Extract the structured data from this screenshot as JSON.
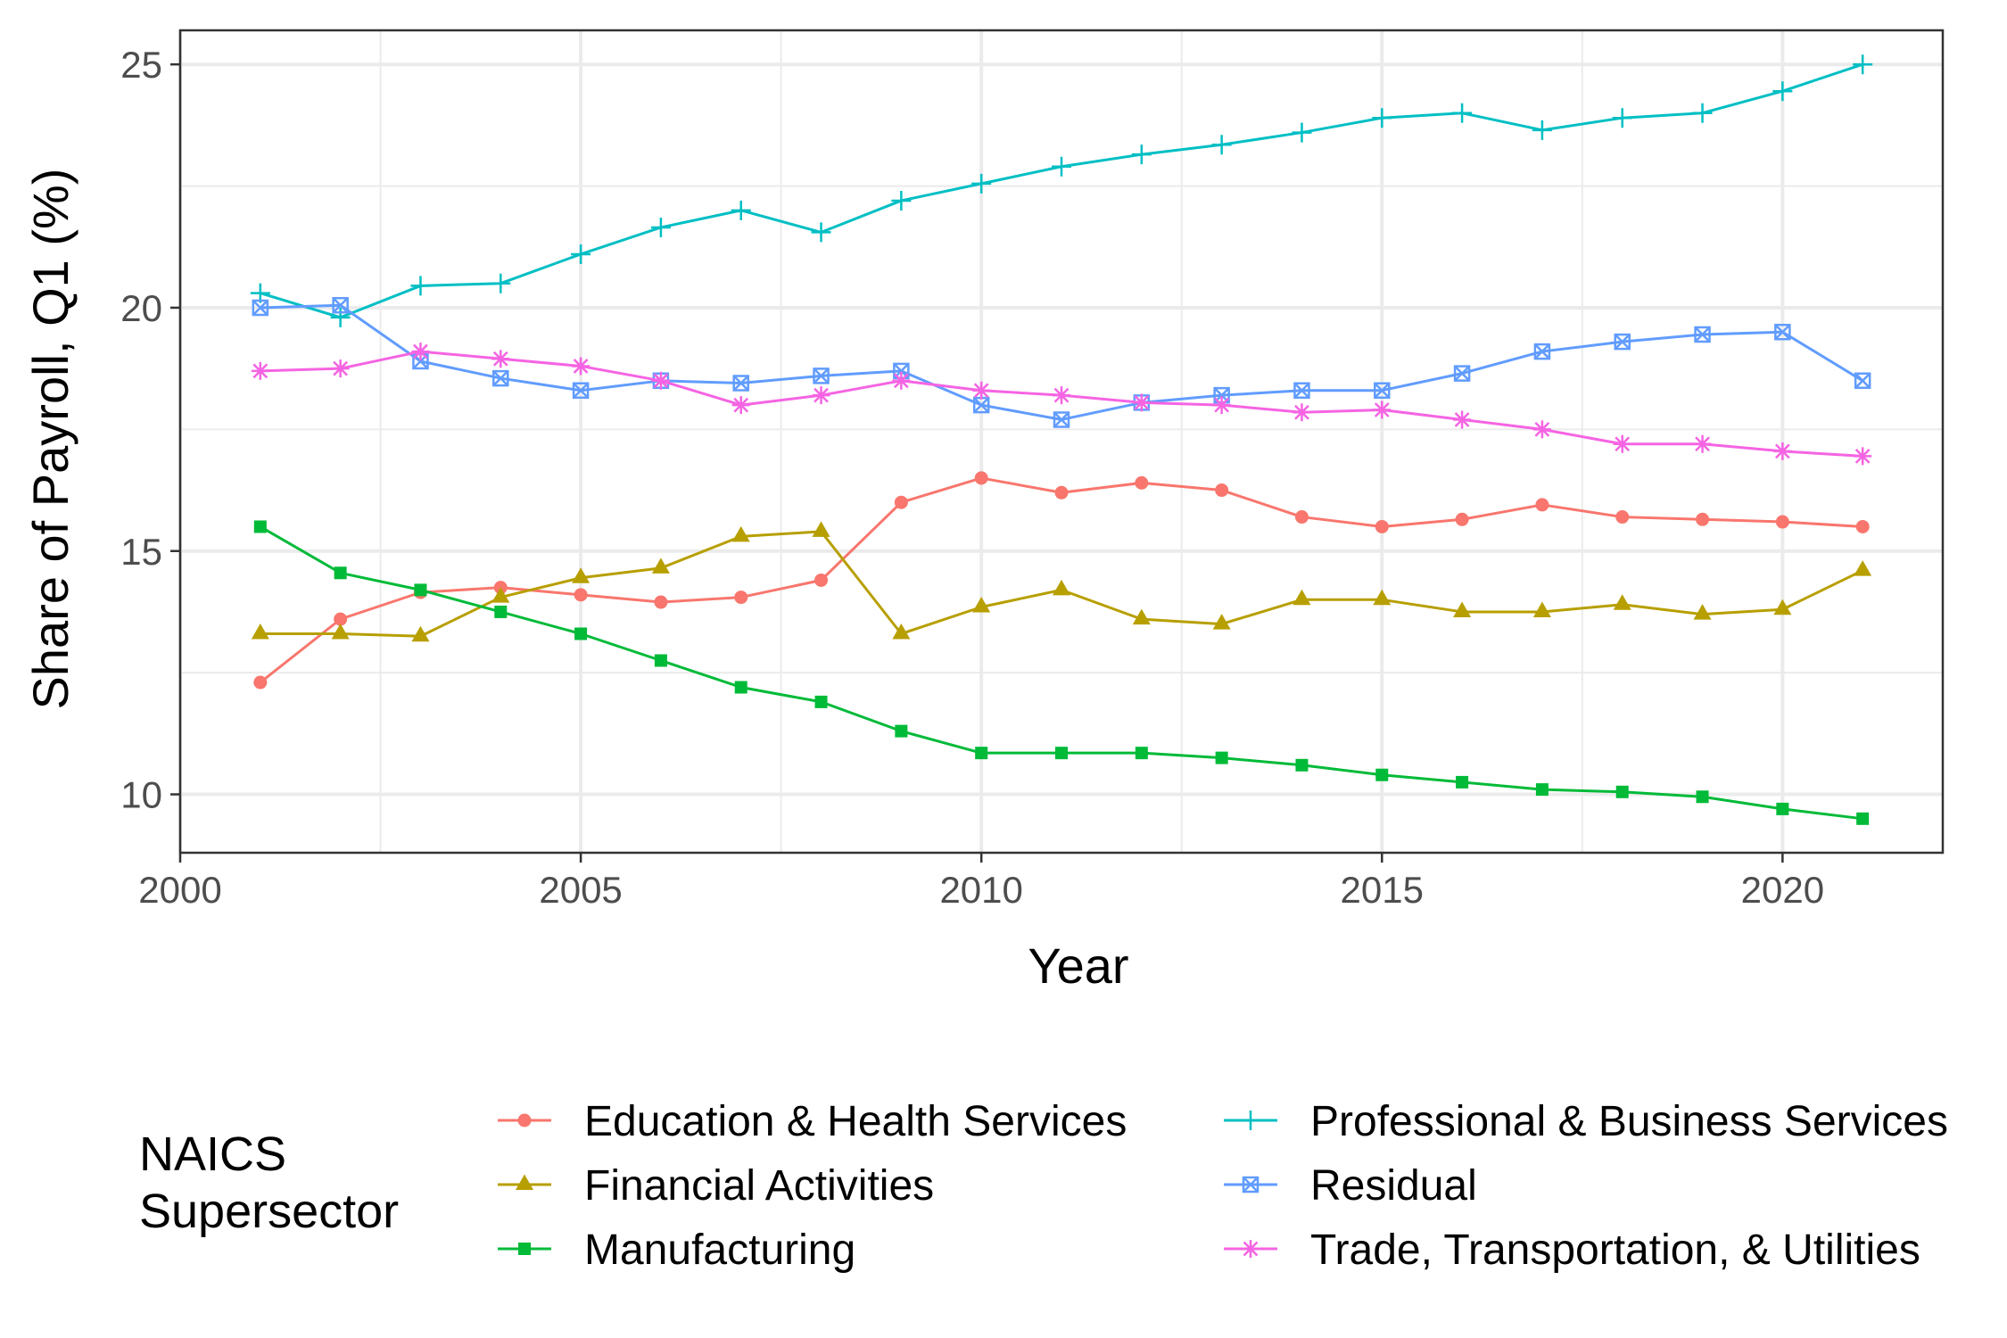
{
  "chart_data": {
    "type": "line",
    "xlabel": "Year",
    "ylabel": "Share of Payroll, Q1 (%)",
    "xlim": [
      2000,
      2022
    ],
    "ylim": [
      8.8,
      25.7
    ],
    "x_ticks": [
      2000,
      2005,
      2010,
      2015,
      2020
    ],
    "y_ticks": [
      10,
      15,
      20,
      25
    ],
    "grid": true,
    "legend": {
      "title": "NAICS\nSupersector",
      "position": "bottom"
    },
    "x": [
      2001,
      2002,
      2003,
      2004,
      2005,
      2006,
      2007,
      2008,
      2009,
      2010,
      2011,
      2012,
      2013,
      2014,
      2015,
      2016,
      2017,
      2018,
      2019,
      2020,
      2021
    ],
    "series": [
      {
        "name": "Education & Health Services",
        "color": "#F8766D",
        "marker": "circle",
        "values": [
          12.3,
          13.6,
          14.15,
          14.25,
          14.1,
          13.95,
          14.05,
          14.4,
          16.0,
          16.5,
          16.2,
          16.4,
          16.25,
          15.7,
          15.5,
          15.65,
          15.95,
          15.7,
          15.65,
          15.6,
          15.5
        ]
      },
      {
        "name": "Financial Activities",
        "color": "#B79F00",
        "marker": "triangle",
        "values": [
          13.3,
          13.3,
          13.25,
          14.05,
          14.45,
          14.65,
          15.3,
          15.4,
          13.3,
          13.85,
          14.2,
          13.6,
          13.5,
          14.0,
          14.0,
          13.75,
          13.75,
          13.9,
          13.7,
          13.8,
          14.6
        ]
      },
      {
        "name": "Manufacturing",
        "color": "#00BA38",
        "marker": "square",
        "values": [
          15.5,
          14.55,
          14.2,
          13.75,
          13.3,
          12.75,
          12.2,
          11.9,
          11.3,
          10.85,
          10.85,
          10.85,
          10.75,
          10.6,
          10.4,
          10.25,
          10.1,
          10.05,
          9.95,
          9.7,
          9.5
        ]
      },
      {
        "name": "Professional & Business Services",
        "color": "#00BFC4",
        "marker": "plus",
        "values": [
          20.3,
          19.8,
          20.45,
          20.5,
          21.1,
          21.65,
          22.0,
          21.55,
          22.2,
          22.55,
          22.9,
          23.15,
          23.35,
          23.6,
          23.9,
          24.0,
          23.65,
          23.9,
          24.0,
          24.45,
          25.0
        ]
      },
      {
        "name": "Residual",
        "color": "#619CFF",
        "marker": "boxx",
        "values": [
          20.0,
          20.05,
          18.9,
          18.55,
          18.3,
          18.5,
          18.45,
          18.6,
          18.7,
          18.0,
          17.7,
          18.05,
          18.2,
          18.3,
          18.3,
          18.65,
          19.1,
          19.3,
          19.45,
          19.5,
          18.5
        ]
      },
      {
        "name": "Trade, Transportation, & Utilities",
        "color": "#F564E3",
        "marker": "star",
        "values": [
          18.7,
          18.75,
          19.1,
          18.95,
          18.8,
          18.5,
          18.0,
          18.2,
          18.5,
          18.3,
          18.2,
          18.05,
          18.0,
          17.85,
          17.9,
          17.7,
          17.5,
          17.2,
          17.2,
          17.05,
          16.95
        ]
      }
    ]
  }
}
